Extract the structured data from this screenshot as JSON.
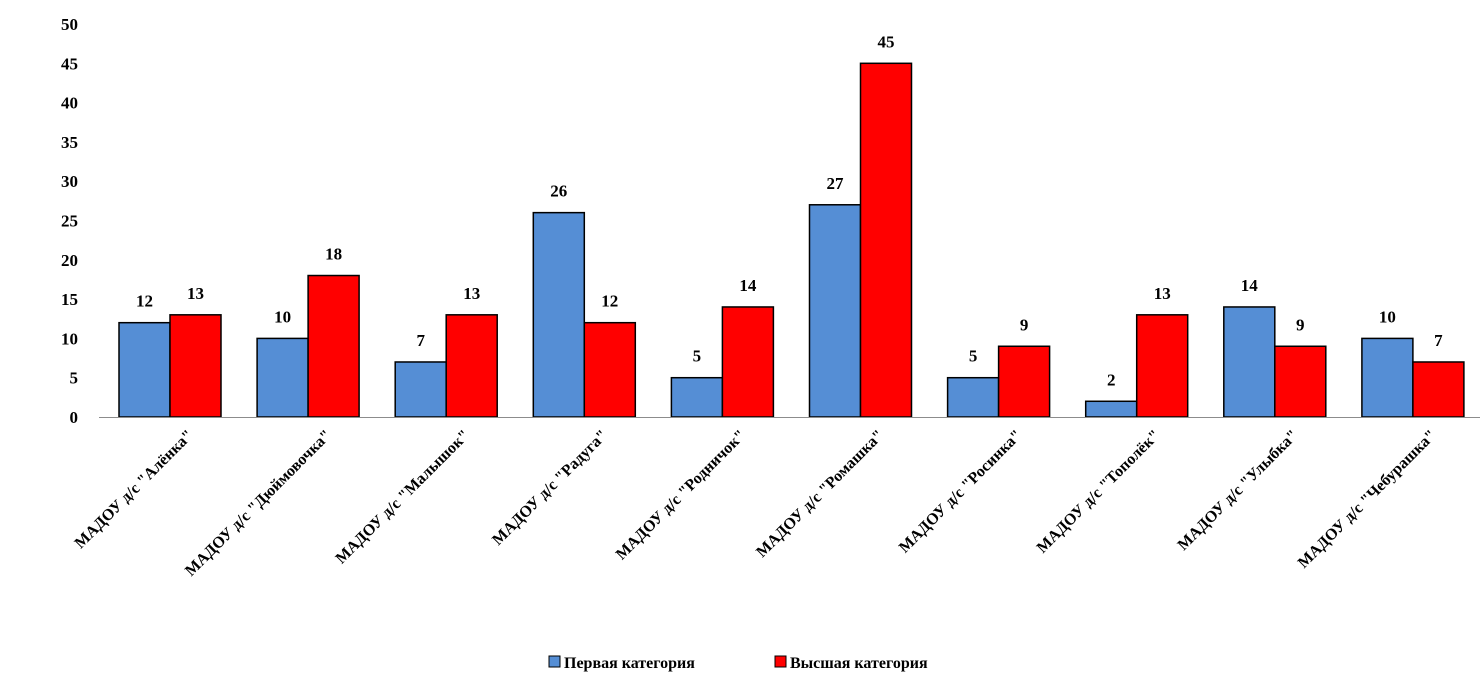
{
  "chart_data": {
    "type": "bar",
    "categories": [
      "МАДОУ д/с \"Алёнка\"",
      "МАДОУ д/с \"Дюймовочка\"",
      "МАДОУ д/с \"Малышок\"",
      "МАДОУ д/с \"Радуга\"",
      "МАДОУ д/с \"Родничок\"",
      "МАДОУ д/с \"Ромашка\"",
      "МАДОУ д/с \"Росинка\"",
      "МАДОУ д/с \"Тополёк\"",
      "МАДОУ д/с \"Улыбка\"",
      "МАДОУ д/с \"Чебурашка\""
    ],
    "series": [
      {
        "name": "Первая категория",
        "color": "#558ED5",
        "values": [
          12,
          10,
          7,
          26,
          5,
          27,
          5,
          2,
          14,
          10
        ]
      },
      {
        "name": "Высшая категория",
        "color": "#FF0000",
        "values": [
          13,
          18,
          13,
          12,
          14,
          45,
          9,
          13,
          9,
          7
        ]
      }
    ],
    "ylim": [
      0,
      50
    ],
    "yticks": [
      0,
      5,
      10,
      15,
      20,
      25,
      30,
      35,
      40,
      45,
      50
    ],
    "grid": false,
    "legend": "bottom",
    "title": "",
    "xlabel": "",
    "ylabel": ""
  }
}
